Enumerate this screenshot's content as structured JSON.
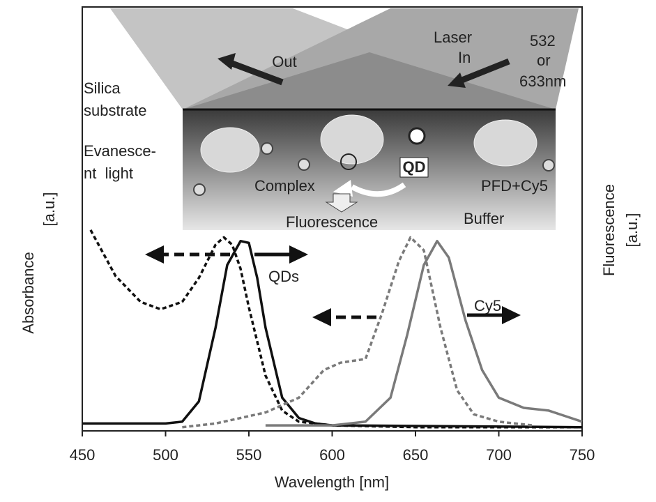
{
  "chart_data": {
    "type": "line",
    "x_label": "Wavelength [nm]",
    "y_label_lines": [
      "Absorbance",
      "[a.u.]"
    ],
    "y2_label_lines": [
      "Fluorescence",
      "[a.u.]"
    ],
    "xlim": [
      450,
      750
    ],
    "xticks": [
      450,
      500,
      550,
      600,
      650,
      700,
      750
    ],
    "ylim": [
      0,
      2.3
    ],
    "series": [
      {
        "color": "#111111",
        "dash": true,
        "x": [
          455,
          470,
          485,
          497,
          510,
          520,
          530,
          535,
          540,
          545,
          550,
          560,
          570,
          580,
          600,
          650,
          750
        ],
        "values": [
          1.09,
          0.84,
          0.7,
          0.66,
          0.7,
          0.83,
          1.01,
          1.05,
          1.01,
          0.88,
          0.67,
          0.3,
          0.11,
          0.05,
          0.03,
          0.02,
          0.02
        ]
      },
      {
        "color": "#111111",
        "dash": false,
        "x": [
          450,
          500,
          510,
          520,
          530,
          537,
          545,
          550,
          555,
          560,
          570,
          580,
          590,
          600,
          750
        ],
        "values": [
          0.04,
          0.04,
          0.05,
          0.16,
          0.56,
          0.9,
          1.03,
          1.02,
          0.83,
          0.56,
          0.18,
          0.07,
          0.04,
          0.03,
          0.02
        ]
      },
      {
        "color": "#7a7a7a",
        "dash": true,
        "x": [
          510,
          530,
          560,
          580,
          595,
          605,
          620,
          630,
          640,
          647,
          655,
          665,
          675,
          685,
          700,
          720
        ],
        "values": [
          0.02,
          0.04,
          0.1,
          0.18,
          0.33,
          0.37,
          0.39,
          0.64,
          0.92,
          1.05,
          0.98,
          0.56,
          0.22,
          0.09,
          0.05,
          0.03
        ]
      },
      {
        "color": "#7a7a7a",
        "dash": false,
        "x": [
          560,
          600,
          620,
          635,
          645,
          655,
          663,
          670,
          680,
          690,
          700,
          715,
          730,
          740,
          750
        ],
        "values": [
          0.03,
          0.03,
          0.05,
          0.18,
          0.52,
          0.9,
          1.03,
          0.94,
          0.6,
          0.33,
          0.18,
          0.125,
          0.11,
          0.08,
          0.05
        ]
      }
    ],
    "annotations": [
      "QDs",
      "Cy5"
    ],
    "inset": {
      "out": "Out",
      "laser": "Laser",
      "in": "In",
      "wl1": "532",
      "or": "or",
      "wl2": "633nm",
      "silica": [
        "Silica",
        "substrate"
      ],
      "evanescent": [
        "Evanesce-",
        "nt  light"
      ],
      "qd": "QD",
      "complex": "Complex",
      "pfd": "PFD+Cy5",
      "fluorescence": "Fluorescence",
      "buffer": "Buffer"
    }
  }
}
